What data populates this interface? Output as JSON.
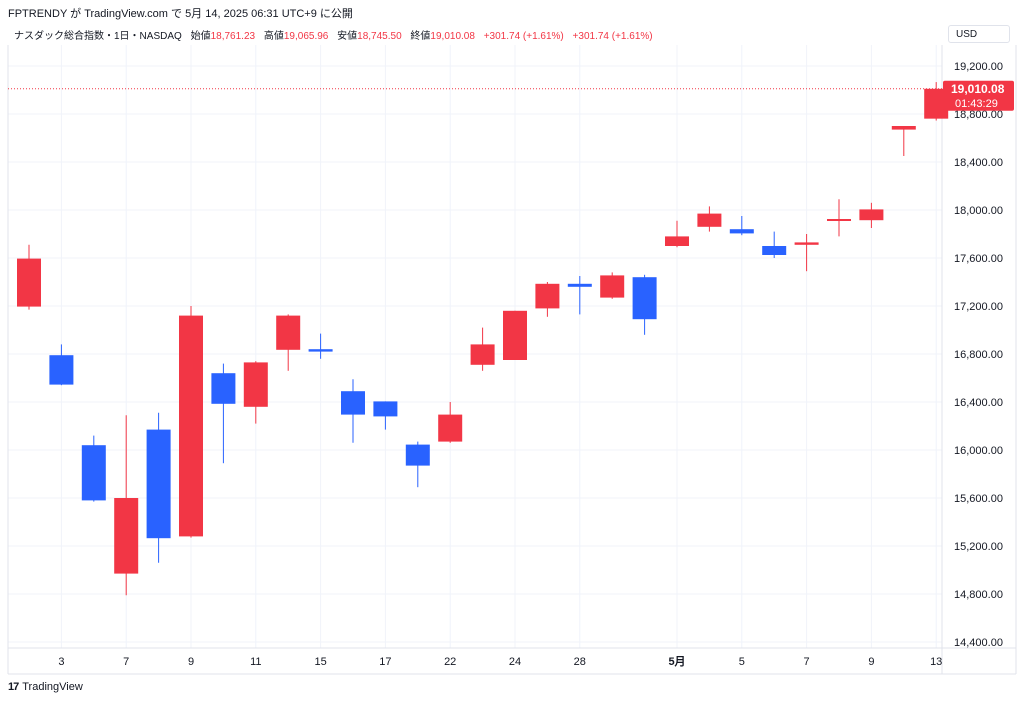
{
  "header": {
    "title": "FPTRENDY が TradingView.com で 5月 14, 2025 06:31 UTC+9 に公開"
  },
  "legend": {
    "symbol": "ナスダック総合指数・1日・NASDAQ",
    "open_label": "始値",
    "open_value": "18,761.23",
    "high_label": "高値",
    "high_value": "19,065.96",
    "low_label": "安値",
    "low_value": "18,745.50",
    "close_label": "終値",
    "close_value": "19,010.08",
    "change": "+301.74 (+1.61%)",
    "change2": "+301.74 (+1.61%)"
  },
  "currency": "USD",
  "price_label": {
    "price": "19,010.08",
    "countdown": "01:43:29"
  },
  "footer": {
    "brand": "TradingView"
  },
  "colors": {
    "up": "#f23645",
    "down": "#2962ff",
    "grid": "#f0f3fa"
  },
  "chart_data": {
    "type": "candlestick",
    "ylim": [
      14200,
      19400
    ],
    "y_ticks": [
      19200,
      18800,
      18400,
      18000,
      17600,
      17200,
      16800,
      16400,
      16000,
      15600,
      15200,
      14800,
      14400
    ],
    "y_tick_labels": [
      "19,200.00",
      "18,800.00",
      "18,400.00",
      "18,000.00",
      "17,600.00",
      "17,200.00",
      "16,800.00",
      "16,400.00",
      "16,000.00",
      "15,600.00",
      "15,200.00",
      "14,800.00",
      "14,400.00"
    ],
    "x_ticks": [
      {
        "label": "3",
        "index": 1
      },
      {
        "label": "7",
        "index": 3
      },
      {
        "label": "9",
        "index": 5
      },
      {
        "label": "11",
        "index": 7
      },
      {
        "label": "15",
        "index": 9
      },
      {
        "label": "17",
        "index": 11
      },
      {
        "label": "22",
        "index": 13
      },
      {
        "label": "24",
        "index": 15
      },
      {
        "label": "28",
        "index": 17
      },
      {
        "label": "5月",
        "index": 20,
        "bold": true
      },
      {
        "label": "5",
        "index": 22
      },
      {
        "label": "7",
        "index": 24
      },
      {
        "label": "9",
        "index": 26
      },
      {
        "label": "13",
        "index": 28
      }
    ],
    "last_price": 19010.08,
    "candles": [
      {
        "o": 17195,
        "h": 17710,
        "l": 17170,
        "c": 17595
      },
      {
        "o": 16790,
        "h": 16880,
        "l": 16540,
        "c": 16545
      },
      {
        "o": 16040,
        "h": 16120,
        "l": 15570,
        "c": 15580
      },
      {
        "o": 14970,
        "h": 16290,
        "l": 14790,
        "c": 15600
      },
      {
        "o": 16170,
        "h": 16310,
        "l": 15060,
        "c": 15265
      },
      {
        "o": 15280,
        "h": 17200,
        "l": 15270,
        "c": 17120
      },
      {
        "o": 16640,
        "h": 16720,
        "l": 15890,
        "c": 16385
      },
      {
        "o": 16360,
        "h": 16740,
        "l": 16220,
        "c": 16730
      },
      {
        "o": 16835,
        "h": 17130,
        "l": 16660,
        "c": 17120
      },
      {
        "o": 16840,
        "h": 16970,
        "l": 16760,
        "c": 16820
      },
      {
        "o": 16490,
        "h": 16590,
        "l": 16060,
        "c": 16295
      },
      {
        "o": 16405,
        "h": 16405,
        "l": 16170,
        "c": 16280
      },
      {
        "o": 16045,
        "h": 16070,
        "l": 15690,
        "c": 15870
      },
      {
        "o": 16070,
        "h": 16400,
        "l": 16060,
        "c": 16295
      },
      {
        "o": 16710,
        "h": 17020,
        "l": 16660,
        "c": 16880
      },
      {
        "o": 16750,
        "h": 17160,
        "l": 16750,
        "c": 17160
      },
      {
        "o": 17180,
        "h": 17400,
        "l": 17110,
        "c": 17385
      },
      {
        "o": 17385,
        "h": 17450,
        "l": 17130,
        "c": 17360
      },
      {
        "o": 17270,
        "h": 17480,
        "l": 17260,
        "c": 17455
      },
      {
        "o": 17440,
        "h": 17460,
        "l": 16960,
        "c": 17090
      },
      {
        "o": 17700,
        "h": 17910,
        "l": 17690,
        "c": 17780
      },
      {
        "o": 17860,
        "h": 18030,
        "l": 17820,
        "c": 17970
      },
      {
        "o": 17840,
        "h": 17950,
        "l": 17790,
        "c": 17805
      },
      {
        "o": 17700,
        "h": 17820,
        "l": 17600,
        "c": 17625
      },
      {
        "o": 17710,
        "h": 17800,
        "l": 17490,
        "c": 17730
      },
      {
        "o": 17915,
        "h": 18090,
        "l": 17780,
        "c": 17925
      },
      {
        "o": 17915,
        "h": 18060,
        "l": 17850,
        "c": 18005
      },
      {
        "o": 18670,
        "h": 18680,
        "l": 18450,
        "c": 18700
      },
      {
        "o": 18761.23,
        "h": 19065.96,
        "l": 18745.5,
        "c": 19010.08
      }
    ]
  }
}
